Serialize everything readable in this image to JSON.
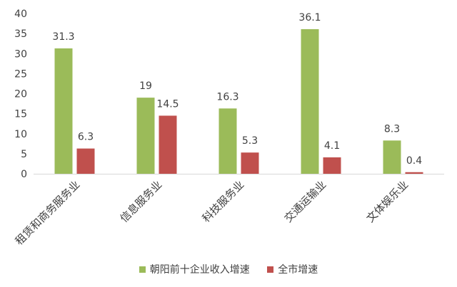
{
  "chart_data": {
    "type": "bar",
    "categories": [
      "租赁和商务服务业",
      "信息服务业",
      "科技服务业",
      "交通运输业",
      "文体娱乐业"
    ],
    "series": [
      {
        "name": "朝阳前十企业收入增速",
        "color": "#9BBB59",
        "values": [
          31.3,
          19,
          16.3,
          36.1,
          8.3
        ]
      },
      {
        "name": "全市增速",
        "color": "#C0504D",
        "values": [
          6.3,
          14.5,
          5.3,
          4.1,
          0.4
        ]
      }
    ],
    "ylim": [
      0,
      40
    ],
    "yticks": [
      0,
      5,
      10,
      15,
      20,
      25,
      30,
      35,
      40
    ],
    "grid": false,
    "legend": "bottom"
  }
}
